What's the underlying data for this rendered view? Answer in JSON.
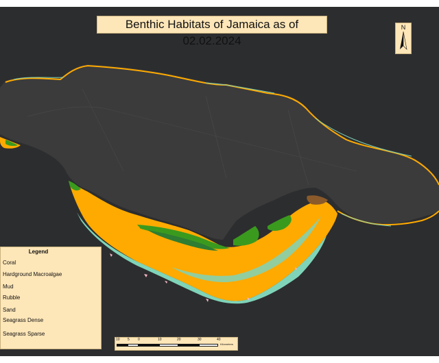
{
  "map": {
    "title": "Benthic Habitats of Jamaica as of 02.02.2024",
    "north_label": "N",
    "legend": {
      "title": "Legend",
      "items": [
        {
          "label": "Coral",
          "color": "#f4b6c2"
        },
        {
          "label": "Hardground Macroalgae",
          "color": "#3a9a1e"
        },
        {
          "label": "Mud",
          "color": "#8b5a2b"
        },
        {
          "label": "Rubble",
          "color": "#c8e08a"
        },
        {
          "label": "Sand",
          "color": "#ffaa00"
        },
        {
          "label": "Seagrass Dense",
          "color": "#2e7d32"
        },
        {
          "label": "Seagrass Sparse",
          "color": "#7fd4b8"
        }
      ]
    },
    "scale": {
      "ticks": [
        "10",
        "5",
        "0",
        "10",
        "20",
        "30",
        "40"
      ],
      "unit": "Kilometers"
    },
    "colors": {
      "background": "#2c2d2f",
      "land": "#3b3b3b",
      "panel": "#fde6b8"
    }
  }
}
